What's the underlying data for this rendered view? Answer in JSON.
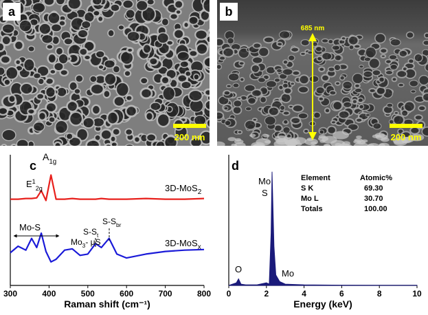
{
  "figure": {
    "panel_a": {
      "label": "a",
      "scale_bar": "200 nm"
    },
    "panel_b": {
      "label": "b",
      "scale_bar": "200 nm",
      "thickness": "685 nm"
    }
  },
  "chart_data": [
    {
      "type": "line",
      "panel_label": "c",
      "xlabel": "Raman shift (cm⁻¹)",
      "xlim": [
        300,
        800
      ],
      "xticks": [
        300,
        400,
        500,
        600,
        700,
        800
      ],
      "ylim": [
        0,
        100
      ],
      "x": [
        300,
        320,
        340,
        355,
        368,
        380,
        392,
        405,
        418,
        440,
        460,
        480,
        500,
        520,
        535,
        555,
        575,
        600,
        650,
        700,
        750,
        800
      ],
      "series": [
        {
          "name": "3D-MoS",
          "name_sub": "2",
          "color": "#e8201c",
          "values": [
            66,
            66,
            66.5,
            66.5,
            67,
            72.5,
            65,
            84.5,
            66,
            66,
            66.5,
            66,
            66,
            66,
            66.5,
            66,
            66,
            66,
            66.5,
            66,
            66,
            66.5
          ]
        },
        {
          "name": "3D-MoS",
          "name_sub": "x",
          "color": "#1a1ad8",
          "values": [
            25,
            30,
            27,
            36,
            29,
            40,
            26,
            18,
            20,
            27,
            28,
            23,
            24,
            32,
            29,
            36,
            24,
            21,
            24,
            26,
            27,
            27.5
          ]
        }
      ],
      "annotations": [
        {
          "text": "A",
          "sub": "1g"
        },
        {
          "text": "E",
          "sup": "1",
          "sub": "2g"
        },
        {
          "text": "Mo-S"
        },
        {
          "text": "Mo",
          "sub": "3",
          "after": "- μS"
        },
        {
          "text": "S-S",
          "sub": "t"
        },
        {
          "text": "S-S",
          "sub": "br"
        }
      ]
    },
    {
      "type": "area",
      "panel_label": "d",
      "xlabel": "Energy (keV)",
      "xlim": [
        0,
        10
      ],
      "xticks": [
        0,
        2,
        4,
        6,
        8,
        10
      ],
      "ylim": [
        0,
        100
      ],
      "x": [
        0,
        0.2,
        0.4,
        0.52,
        0.65,
        0.9,
        1.5,
        2.0,
        2.15,
        2.25,
        2.3,
        2.4,
        2.5,
        2.7,
        3.0,
        4,
        5,
        6,
        8,
        10
      ],
      "series": [
        {
          "color": "#1a1a7a",
          "values": [
            0,
            1,
            2,
            5,
            1,
            0.5,
            0.5,
            2,
            1,
            40,
            87,
            30,
            8,
            3,
            1,
            0.5,
            0.3,
            0.2,
            0.1,
            0.1
          ]
        }
      ],
      "annotations": [
        {
          "text": "Mo"
        },
        {
          "text": "S"
        },
        {
          "text": "O"
        },
        {
          "text": "Mo"
        }
      ],
      "table": {
        "headers": [
          "Element",
          "Atomic%"
        ],
        "rows": [
          [
            "S K",
            "69.30"
          ],
          [
            "Mo L",
            "30.70"
          ],
          [
            "Totals",
            "100.00"
          ]
        ]
      }
    }
  ]
}
